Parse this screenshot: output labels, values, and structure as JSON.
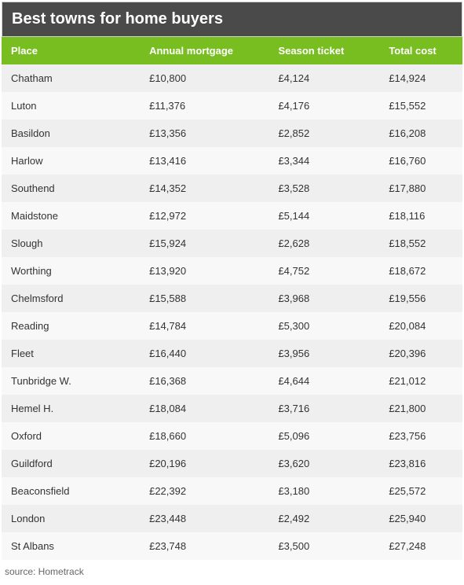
{
  "title": "Best towns for home buyers",
  "columns": [
    "Place",
    "Annual mortgage",
    "Season ticket",
    "Total cost"
  ],
  "rows": [
    [
      "Chatham",
      "£10,800",
      "£4,124",
      "£14,924"
    ],
    [
      "Luton",
      "£11,376",
      "£4,176",
      "£15,552"
    ],
    [
      "Basildon",
      "£13,356",
      "£2,852",
      "£16,208"
    ],
    [
      "Harlow",
      "£13,416",
      "£3,344",
      "£16,760"
    ],
    [
      "Southend",
      "£14,352",
      "£3,528",
      "£17,880"
    ],
    [
      "Maidstone",
      "£12,972",
      "£5,144",
      "£18,116"
    ],
    [
      "Slough",
      "£15,924",
      "£2,628",
      "£18,552"
    ],
    [
      "Worthing",
      "£13,920",
      "£4,752",
      "£18,672"
    ],
    [
      "Chelmsford",
      "£15,588",
      "£3,968",
      "£19,556"
    ],
    [
      "Reading",
      "£14,784",
      "£5,300",
      "£20,084"
    ],
    [
      "Fleet",
      "£16,440",
      "£3,956",
      "£20,396"
    ],
    [
      "Tunbridge W.",
      "£16,368",
      "£4,644",
      "£21,012"
    ],
    [
      "Hemel H.",
      "£18,084",
      "£3,716",
      "£21,800"
    ],
    [
      "Oxford",
      "£18,660",
      "£5,096",
      "£23,756"
    ],
    [
      "Guildford",
      "£20,196",
      "£3,620",
      "£23,816"
    ],
    [
      "Beaconsfield",
      "£22,392",
      "£3,180",
      "£25,572"
    ],
    [
      "London",
      "£23,448",
      "£2,492",
      "£25,940"
    ],
    [
      "St Albans",
      "£23,748",
      "£3,500",
      "£27,248"
    ]
  ],
  "source": "source: Hometrack",
  "styling": {
    "type": "table",
    "title_bg": "#4a4a4a",
    "title_color": "#ffffff",
    "title_fontsize": 20,
    "header_bg": "#78be20",
    "header_color": "#ffffff",
    "row_bg_odd": "#efefef",
    "row_bg_even": "#f8f8f8",
    "cell_color": "#333333",
    "cell_fontsize": 13,
    "source_color": "#666666",
    "source_fontsize": 12,
    "column_widths_pct": [
      30,
      28,
      24,
      18
    ],
    "column_align": [
      "left",
      "left",
      "left",
      "left"
    ]
  }
}
